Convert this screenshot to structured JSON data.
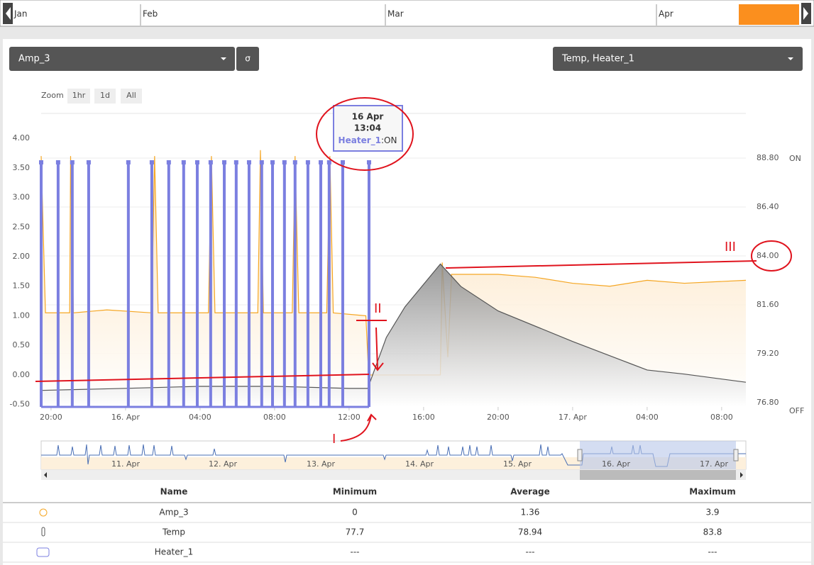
{
  "timeline": {
    "months": [
      "Jan",
      "Feb",
      "Mar",
      "Apr"
    ]
  },
  "controls": {
    "left_select": "Amp_3",
    "sigma": "σ",
    "right_select": "Temp, Heater_1",
    "zoom_label": "Zoom",
    "zoom_buttons": [
      "1hr",
      "1d",
      "All"
    ]
  },
  "chart_data": {
    "type": "line",
    "xlim": [
      -4.53,
      33.3
    ],
    "xticks": [
      {
        "value": -4,
        "label": "20:00"
      },
      {
        "value": 0,
        "label": "16. Apr"
      },
      {
        "value": 4,
        "label": "04:00"
      },
      {
        "value": 8,
        "label": "08:00"
      },
      {
        "value": 12,
        "label": "12:00"
      },
      {
        "value": 16,
        "label": "16:00"
      },
      {
        "value": 20,
        "label": "20:00"
      },
      {
        "value": 24,
        "label": "17. Apr"
      },
      {
        "value": 28,
        "label": "04:00"
      },
      {
        "value": 32,
        "label": "08:00"
      }
    ],
    "ylim": [
      -0.54,
      4.42
    ],
    "yticks": [
      {
        "value": -0.5,
        "label": "-0.50"
      },
      {
        "value": 0,
        "label": "0.00"
      },
      {
        "value": 0.5,
        "label": "0.50"
      },
      {
        "value": 1,
        "label": "1.00"
      },
      {
        "value": 1.5,
        "label": "1.50"
      },
      {
        "value": 2,
        "label": "2.00"
      },
      {
        "value": 2.5,
        "label": "2.50"
      },
      {
        "value": 3,
        "label": "3.00"
      },
      {
        "value": 3.5,
        "label": "3.50"
      },
      {
        "value": 4,
        "label": "4.00"
      }
    ],
    "y2lim": [
      76.59,
      90.99
    ],
    "y2ticks": [
      {
        "value": 76.8,
        "label": "76.80"
      },
      {
        "value": 79.2,
        "label": "79.20"
      },
      {
        "value": 81.6,
        "label": "81.60"
      },
      {
        "value": 84,
        "label": "84.00"
      },
      {
        "value": 86.4,
        "label": "86.40"
      },
      {
        "value": 88.8,
        "label": "88.80"
      }
    ],
    "y3lim": [
      0,
      1.2
    ],
    "y3ticks": [
      {
        "value": 0,
        "label": "OFF"
      },
      {
        "value": 1,
        "label": "ON"
      }
    ],
    "grid": true,
    "series": [
      {
        "name": "Amp_3",
        "color": "#f5a623",
        "axis": "y",
        "x": [
          -4.53,
          -4.3,
          -3,
          -2.95,
          -2.8,
          -1,
          1.4,
          1.56,
          1.75,
          4.45,
          4.61,
          4.8,
          7.1,
          7.24,
          7.4,
          8.95,
          9.1,
          9.3,
          10.8,
          10.97,
          11.15,
          12.9,
          13.05,
          16.9,
          17.0,
          17.3,
          17.5,
          20,
          22,
          24,
          26,
          28,
          30,
          33.3
        ],
        "values": [
          3.7,
          1.05,
          1.05,
          3.7,
          1.05,
          1.1,
          1.05,
          3.7,
          1.05,
          1.05,
          3.7,
          1.05,
          1.05,
          3.8,
          1.05,
          1.05,
          3.7,
          1.05,
          1.05,
          3.7,
          1.05,
          1.0,
          0,
          0,
          1.9,
          0.3,
          1.7,
          1.7,
          1.65,
          1.55,
          1.5,
          1.6,
          1.55,
          1.6
        ]
      },
      {
        "name": "Temp",
        "color": "#555555",
        "axis": "y2",
        "x": [
          -4.53,
          0,
          4,
          8,
          12,
          13.0,
          14,
          15,
          16.9,
          18,
          20,
          24,
          28,
          30,
          33.3
        ],
        "values": [
          77.4,
          77.5,
          77.6,
          77.6,
          77.5,
          77.5,
          80,
          81.5,
          83.6,
          82.5,
          81.3,
          79.8,
          78.4,
          78.2,
          77.8
        ]
      },
      {
        "name": "Heater_1",
        "color": "#7b7fe0",
        "axis": "y3",
        "x": [
          -4.53,
          -3.62,
          -2.86,
          -1.98,
          0.15,
          1.41,
          2.32,
          3.12,
          3.85,
          4.57,
          5.3,
          5.94,
          6.63,
          7.31,
          7.89,
          8.53,
          9.1,
          9.79,
          10.48,
          10.93,
          11.66,
          13.07
        ],
        "values": [
          1,
          1,
          1,
          1,
          1,
          1,
          1,
          1,
          1,
          1,
          1,
          1,
          1,
          1,
          1,
          1,
          1,
          1,
          1,
          1,
          1,
          1
        ]
      }
    ],
    "tooltip": {
      "date": "16 Apr",
      "time": "13:04",
      "series": "Heater_1",
      "value": ":ON"
    },
    "annotations": [
      "I",
      "II",
      "III"
    ]
  },
  "navigator": {
    "labels": [
      "11. Apr",
      "12. Apr",
      "13. Apr",
      "14. Apr",
      "15. Apr",
      "16. Apr",
      "17. Apr"
    ]
  },
  "table": {
    "header": [
      "Name",
      "Minimum",
      "Average",
      "Maximum"
    ],
    "rows": [
      [
        "Amp_3",
        "0",
        "1.36",
        "3.9"
      ],
      [
        "Temp",
        "77.7",
        "78.94",
        "83.8"
      ],
      [
        "Heater_1",
        "---",
        "---",
        "---"
      ]
    ]
  }
}
